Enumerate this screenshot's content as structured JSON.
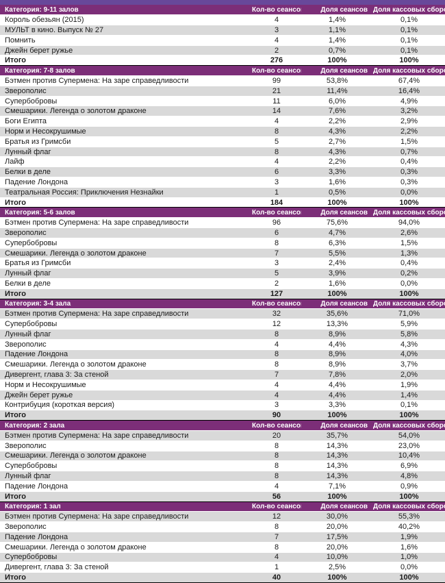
{
  "page": {
    "top_strip_color": "#68489a",
    "accent_color": "#7c2e78",
    "stripe_color": "#d9d9d9",
    "total_label": "Итого"
  },
  "table": {
    "columns": [
      "Кол-во сеансов",
      "Доля сеансов",
      "Доля кассовых сборов"
    ],
    "sections": [
      {
        "category": "Категория: 9-11 залов",
        "rows": [
          [
            "Король обезьян (2015)",
            "4",
            "1,4%",
            "0,1%"
          ],
          [
            "МУЛЬТ в кино. Выпуск № 27",
            "3",
            "1,1%",
            "0,1%"
          ],
          [
            "Помнить",
            "4",
            "1,4%",
            "0,1%"
          ],
          [
            "Джейн берет ружье",
            "2",
            "0,7%",
            "0,1%"
          ]
        ],
        "total": [
          "Итого",
          "276",
          "100%",
          "100%"
        ]
      },
      {
        "category": "Категория: 7-8 залов",
        "rows": [
          [
            "Бэтмен против Супермена: На заре справедливости",
            "99",
            "53,8%",
            "67,4%"
          ],
          [
            "Зверополис",
            "21",
            "11,4%",
            "16,4%"
          ],
          [
            "Супербобровы",
            "11",
            "6,0%",
            "4,9%"
          ],
          [
            "Смешарики. Легенда о золотом драконе",
            "14",
            "7,6%",
            "3,2%"
          ],
          [
            "Боги Египта",
            "4",
            "2,2%",
            "2,9%"
          ],
          [
            "Норм и Несокрушимые",
            "8",
            "4,3%",
            "2,2%"
          ],
          [
            "Братья из Гримсби",
            "5",
            "2,7%",
            "1,5%"
          ],
          [
            "Лунный флаг",
            "8",
            "4,3%",
            "0,7%"
          ],
          [
            "Лайф",
            "4",
            "2,2%",
            "0,4%"
          ],
          [
            "Белки в деле",
            "6",
            "3,3%",
            "0,3%"
          ],
          [
            "Падение Лондона",
            "3",
            "1,6%",
            "0,3%"
          ],
          [
            "Театральная Россия: Приключения Незнайки",
            "1",
            "0,5%",
            "0,0%"
          ]
        ],
        "total": [
          "Итого",
          "184",
          "100%",
          "100%"
        ]
      },
      {
        "category": "Категория: 5-6 залов",
        "rows": [
          [
            "Бэтмен против Супермена: На заре справедливости",
            "96",
            "75,6%",
            "94,0%"
          ],
          [
            "Зверополис",
            "6",
            "4,7%",
            "2,6%"
          ],
          [
            "Супербобровы",
            "8",
            "6,3%",
            "1,5%"
          ],
          [
            "Смешарики. Легенда о золотом драконе",
            "7",
            "5,5%",
            "1,3%"
          ],
          [
            "Братья из Гримсби",
            "3",
            "2,4%",
            "0,4%"
          ],
          [
            "Лунный флаг",
            "5",
            "3,9%",
            "0,2%"
          ],
          [
            "Белки в деле",
            "2",
            "1,6%",
            "0,0%"
          ]
        ],
        "total": [
          "Итого",
          "127",
          "100%",
          "100%"
        ]
      },
      {
        "category": "Категория: 3-4 зала",
        "rows": [
          [
            "Бэтмен против Супермена: На заре справедливости",
            "32",
            "35,6%",
            "71,0%"
          ],
          [
            "Супербобровы",
            "12",
            "13,3%",
            "5,9%"
          ],
          [
            "Лунный флаг",
            "8",
            "8,9%",
            "5,8%"
          ],
          [
            "Зверополис",
            "4",
            "4,4%",
            "4,3%"
          ],
          [
            "Падение Лондона",
            "8",
            "8,9%",
            "4,0%"
          ],
          [
            "Смешарики. Легенда о золотом драконе",
            "8",
            "8,9%",
            "3,7%"
          ],
          [
            "Дивергент, глава 3: За стеной",
            "7",
            "7,8%",
            "2,0%"
          ],
          [
            "Норм и Несокрушимые",
            "4",
            "4,4%",
            "1,9%"
          ],
          [
            "Джейн берет ружье",
            "4",
            "4,4%",
            "1,4%"
          ],
          [
            "Контрибуция (короткая версия)",
            "3",
            "3,3%",
            "0,1%"
          ]
        ],
        "total": [
          "Итого",
          "90",
          "100%",
          "100%"
        ]
      },
      {
        "category": "Категория: 2 зала",
        "rows": [
          [
            "Бэтмен против Супермена: На заре справедливости",
            "20",
            "35,7%",
            "54,0%"
          ],
          [
            "Зверополис",
            "8",
            "14,3%",
            "23,0%"
          ],
          [
            "Смешарики. Легенда о золотом драконе",
            "8",
            "14,3%",
            "10,4%"
          ],
          [
            "Супербобровы",
            "8",
            "14,3%",
            "6,9%"
          ],
          [
            "Лунный флаг",
            "8",
            "14,3%",
            "4,8%"
          ],
          [
            "Падение Лондона",
            "4",
            "7,1%",
            "0,9%"
          ]
        ],
        "total": [
          "Итого",
          "56",
          "100%",
          "100%"
        ]
      },
      {
        "category": "Категория: 1 зал",
        "rows": [
          [
            "Бэтмен против Супермена: На заре справедливости",
            "12",
            "30,0%",
            "55,3%"
          ],
          [
            "Зверополис",
            "8",
            "20,0%",
            "40,2%"
          ],
          [
            "Падение Лондона",
            "7",
            "17,5%",
            "1,9%"
          ],
          [
            "Смешарики. Легенда о золотом драконе",
            "8",
            "20,0%",
            "1,6%"
          ],
          [
            "Супербобровы",
            "4",
            "10,0%",
            "1,0%"
          ],
          [
            "Дивергент, глава 3: За стеной",
            "1",
            "2,5%",
            "0,0%"
          ]
        ],
        "total": [
          "Итого",
          "40",
          "100%",
          "100%"
        ]
      }
    ]
  }
}
